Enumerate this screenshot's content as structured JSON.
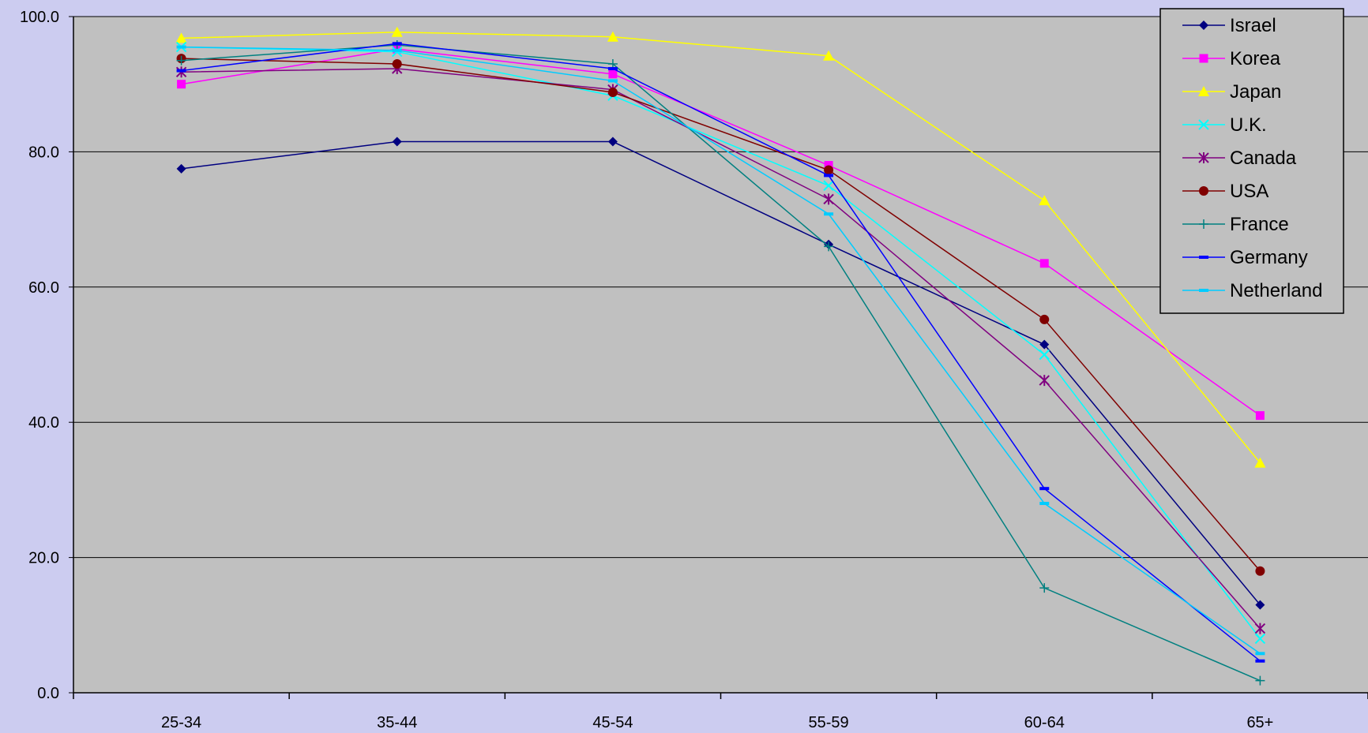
{
  "colors": {
    "page_background": "#ccccf0",
    "plot_background": "#c0c0c0",
    "gridline": "#000000"
  },
  "chart_data": {
    "type": "line",
    "title": "",
    "xlabel": "",
    "ylabel": "",
    "categories": [
      "25-34",
      "35-44",
      "45-54",
      "55-59",
      "60-64",
      "65+"
    ],
    "ylim": [
      0,
      100
    ],
    "yticks": [
      0,
      20,
      40,
      60,
      80,
      100
    ],
    "ytick_labels": [
      "0.0",
      "20.0",
      "40.0",
      "60.0",
      "80.0",
      "100.0"
    ],
    "grid": true,
    "legend_position": "top-right",
    "series": [
      {
        "name": "Israel",
        "color": "#000080",
        "marker": "diamond",
        "values": [
          77.5,
          81.5,
          81.5,
          66.3,
          51.5,
          13.0
        ]
      },
      {
        "name": "Korea",
        "color": "#ff00ff",
        "marker": "square",
        "values": [
          90.0,
          95.2,
          91.5,
          78.0,
          63.5,
          41.0
        ]
      },
      {
        "name": "Japan",
        "color": "#ffff00",
        "marker": "triangle",
        "values": [
          96.8,
          97.7,
          97.0,
          94.2,
          72.8,
          34.0
        ]
      },
      {
        "name": "U.K.",
        "color": "#00ffff",
        "marker": "x",
        "values": [
          95.5,
          94.8,
          88.3,
          75.0,
          50.0,
          8.0
        ]
      },
      {
        "name": "Canada",
        "color": "#800080",
        "marker": "star",
        "values": [
          91.8,
          92.3,
          89.2,
          73.0,
          46.2,
          9.5
        ]
      },
      {
        "name": "USA",
        "color": "#800000",
        "marker": "circle",
        "values": [
          93.8,
          93.0,
          88.8,
          77.3,
          55.2,
          18.0
        ]
      },
      {
        "name": "France",
        "color": "#008080",
        "marker": "plus",
        "values": [
          93.5,
          95.8,
          93.0,
          66.0,
          15.5,
          1.8
        ]
      },
      {
        "name": "Germany",
        "color": "#0000ff",
        "marker": "dash",
        "values": [
          92.0,
          96.0,
          92.3,
          76.5,
          30.2,
          4.7
        ]
      },
      {
        "name": "Netherland",
        "color": "#00ccff",
        "marker": "dash",
        "values": [
          95.5,
          95.0,
          90.5,
          70.8,
          28.0,
          5.8
        ]
      }
    ]
  }
}
